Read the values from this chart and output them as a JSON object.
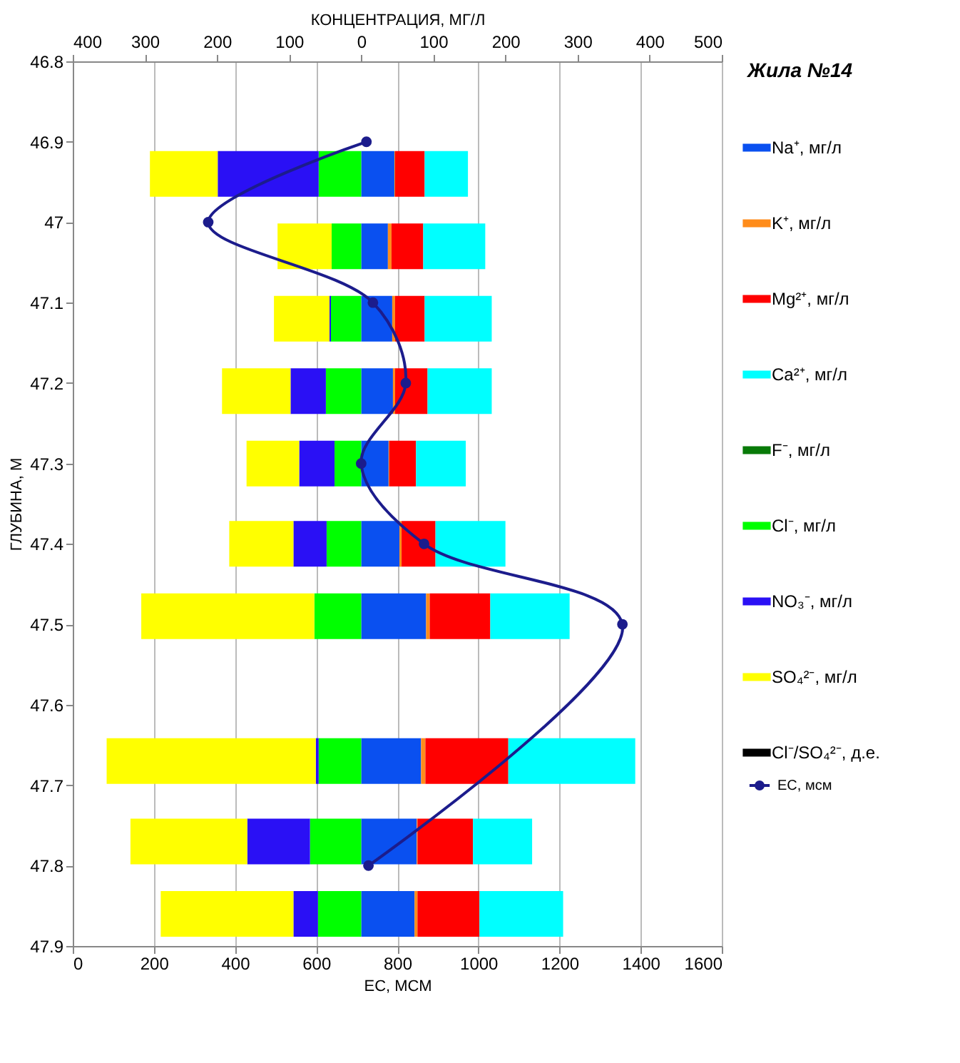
{
  "chart_data": {
    "type": "bar",
    "orientation": "horizontal",
    "stacked": true,
    "legend_title": "Жила №14",
    "legend": "right",
    "grid": "x",
    "xlabel": "ЕС, МСМ",
    "x2label": "КОНЦЕНТРАЦИЯ, МГ/Л",
    "ylabel": "ГЛУБИНА, М",
    "x": [
      46.94,
      47.03,
      47.12,
      47.21,
      47.3,
      47.4,
      47.49,
      47.67,
      47.77,
      47.86
    ],
    "xlim": [
      0,
      1600
    ],
    "xticks": [
      0,
      200,
      400,
      600,
      800,
      1000,
      1200,
      1400,
      1600
    ],
    "x2lim": [
      -400,
      500
    ],
    "x2ticks": [
      {
        "value": -400,
        "label": "400"
      },
      {
        "value": -300,
        "label": "300"
      },
      {
        "value": -200,
        "label": "200"
      },
      {
        "value": -100,
        "label": "100"
      },
      0,
      100,
      200,
      300,
      400,
      500
    ],
    "ylim": [
      47.9,
      46.8
    ],
    "yticks": [
      46.8,
      46.9,
      47,
      47.1,
      47.2,
      47.3,
      47.4,
      47.5,
      47.6,
      47.7,
      47.8,
      47.9
    ],
    "series": [
      {
        "name": "Na⁺, мг/л",
        "color": "#0a50f0",
        "axis": "x2",
        "values": [
          46,
          37,
          43,
          44,
          38,
          53,
          90,
          83,
          77,
          74
        ]
      },
      {
        "name": "K⁺, мг/л",
        "color": "#ff8c1a",
        "axis": "x2",
        "values": [
          1,
          5,
          4,
          3,
          1,
          3,
          5,
          6,
          1,
          4
        ]
      },
      {
        "name": "Mg²⁺, мг/л",
        "color": "#ff0000",
        "axis": "x2",
        "values": [
          41,
          44,
          41,
          45,
          37,
          47,
          84,
          115,
          77,
          86
        ]
      },
      {
        "name": "Ca²⁺, мг/л",
        "color": "#00ffff",
        "axis": "x2",
        "values": [
          60,
          86,
          93,
          89,
          69,
          97,
          110,
          176,
          82,
          116
        ]
      },
      {
        "name": "F⁻, мг/л",
        "color": "#087a08",
        "axis": "x2",
        "values": [
          null,
          null,
          null,
          null,
          null,
          null,
          null,
          null,
          null,
          null
        ]
      },
      {
        "name": "Cl⁻, мг/л",
        "color": "#00ff00",
        "axis": "x2",
        "values": [
          -59,
          -41,
          -42,
          -49,
          -37,
          -48,
          -65,
          -59,
          -71,
          -60
        ]
      },
      {
        "name": "NO₃⁻, мг/л",
        "color": "#2a10f5",
        "axis": "x2",
        "values": [
          -140,
          null,
          -2,
          -49,
          -49,
          -46,
          null,
          -4,
          -87,
          -34
        ]
      },
      {
        "name": "SO₄²⁻, мг/л",
        "color": "#ffff00",
        "axis": "x2",
        "values": [
          -94,
          -75,
          -77,
          -95,
          -73,
          -89,
          -240,
          -290,
          -162,
          -184
        ]
      },
      {
        "name": "Cl⁻/SO₄²⁻, д.е.",
        "color": "#000000",
        "axis": "x2",
        "values": [
          null,
          null,
          null,
          null,
          null,
          null,
          null,
          null,
          null,
          null
        ]
      },
      {
        "name": "EC, мсм",
        "type": "line",
        "color": "#1c1c8c",
        "marker": "circle",
        "line_style": "solid",
        "x": [
          46.9,
          47.0,
          47.1,
          47.2,
          47.3,
          47.4,
          47.5,
          47.8
        ],
        "values": [
          724,
          334,
          740,
          821,
          711,
          866,
          1355,
          729
        ]
      }
    ]
  }
}
